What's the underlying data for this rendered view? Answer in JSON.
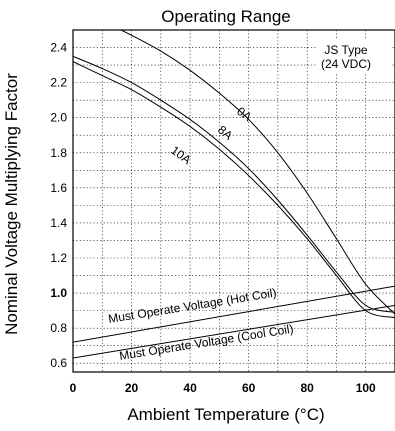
{
  "chart_data": {
    "type": "line",
    "title": "Operating Range",
    "xlabel": "Ambient Temperature (°C)",
    "ylabel": "Nominal Voltage Multiplying Factor",
    "xlim": [
      0,
      110
    ],
    "ylim": [
      0.55,
      2.5
    ],
    "x_ticks": [
      "0",
      "20",
      "40",
      "60",
      "80",
      "100"
    ],
    "y_ticks": [
      "0.6",
      "0.8",
      "1.0",
      "1.2",
      "1.4",
      "1.6",
      "1.8",
      "2.0",
      "2.2",
      "2.4"
    ],
    "y_tick_values": [
      0.6,
      0.8,
      1.0,
      1.2,
      1.4,
      1.6,
      1.8,
      2.0,
      2.2,
      2.4
    ],
    "bold_y_tick": "1.0",
    "grid": true,
    "annotation_lines": [
      "JS Type",
      "(24 VDC)"
    ],
    "series": [
      {
        "name": "0A",
        "x": [
          0,
          10,
          20,
          30,
          40,
          50,
          60,
          70,
          80,
          90,
          100,
          110
        ],
        "y": [
          2.62,
          2.55,
          2.47,
          2.38,
          2.27,
          2.14,
          1.99,
          1.8,
          1.57,
          1.31,
          1.05,
          0.88
        ]
      },
      {
        "name": "8A",
        "x": [
          0,
          10,
          20,
          30,
          40,
          50,
          60,
          70,
          80,
          90,
          100,
          110
        ],
        "y": [
          2.35,
          2.28,
          2.2,
          2.1,
          1.99,
          1.86,
          1.71,
          1.53,
          1.33,
          1.12,
          0.93,
          0.89
        ]
      },
      {
        "name": "10A",
        "x": [
          0,
          10,
          20,
          30,
          40,
          50,
          60,
          70,
          80,
          90,
          100,
          110
        ],
        "y": [
          2.32,
          2.24,
          2.16,
          2.06,
          1.95,
          1.82,
          1.67,
          1.5,
          1.31,
          1.1,
          0.9,
          0.86
        ]
      },
      {
        "name": "Must Operate Voltage (Hot Coil)",
        "x": [
          0,
          110
        ],
        "y": [
          0.72,
          1.04
        ]
      },
      {
        "name": "Must Operate Voltage (Cool Coil)",
        "x": [
          0,
          110
        ],
        "y": [
          0.63,
          0.93
        ]
      }
    ]
  }
}
